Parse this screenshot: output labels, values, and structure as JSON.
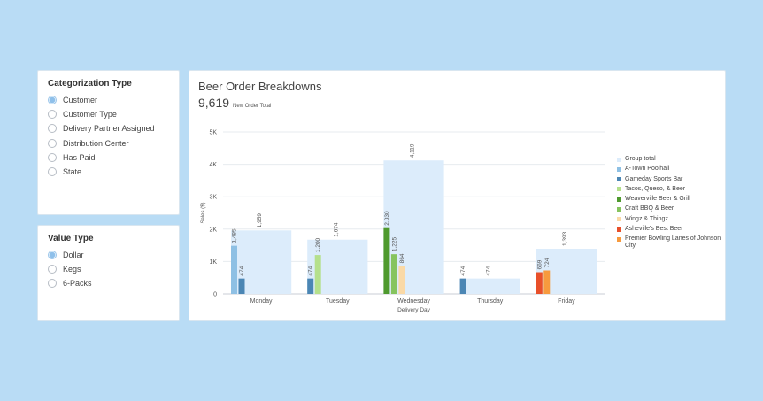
{
  "categorization": {
    "title": "Categorization Type",
    "options": [
      "Customer",
      "Customer Type",
      "Delivery Partner Assigned",
      "Distribution Center",
      "Has Paid",
      "State"
    ],
    "selected": 0
  },
  "value_type": {
    "title": "Value Type",
    "options": [
      "Dollar",
      "Kegs",
      "6-Packs"
    ],
    "selected": 0
  },
  "header": {
    "title": "Beer Order Breakdowns",
    "total_value": "9,619",
    "total_label": "New Order Total"
  },
  "colors": {
    "group_total": "#dcecfb",
    "a_town": "#8ec0e4",
    "gameday": "#4b86b4",
    "tacos": "#b5e08c",
    "weaverville": "#4f9a2e",
    "craft": "#86c45e",
    "wingz": "#fad9a6",
    "asheville": "#e8502a",
    "premier": "#f79a3e"
  },
  "chart_data": {
    "type": "bar",
    "xlabel": "Delivery Day",
    "ylabel": "Sales ($)",
    "ylim": [
      0,
      5000
    ],
    "yticks": [
      0,
      1000,
      2000,
      3000,
      4000,
      5000
    ],
    "ytick_labels": [
      "0",
      "1K",
      "2K",
      "3K",
      "4K",
      "5K"
    ],
    "grid": true,
    "legend": "right",
    "categories": [
      "Monday",
      "Tuesday",
      "Wednesday",
      "Thursday",
      "Friday"
    ],
    "group_total": {
      "name": "Group total",
      "values": [
        1959,
        1674,
        4119,
        474,
        1393
      ],
      "labels": [
        "1,959",
        "1,674",
        "4,119",
        "474",
        "1,393"
      ]
    },
    "series": [
      {
        "name": "A-Town Poolhall",
        "color_key": "a_town",
        "values": [
          1485,
          null,
          null,
          null,
          null
        ],
        "labels": [
          "1,485",
          "",
          "",
          "",
          ""
        ]
      },
      {
        "name": "Gameday Sports Bar",
        "color_key": "gameday",
        "values": [
          474,
          474,
          null,
          474,
          null
        ],
        "labels": [
          "474",
          "474",
          "",
          "474",
          ""
        ]
      },
      {
        "name": "Tacos, Queso, & Beer",
        "color_key": "tacos",
        "values": [
          null,
          1200,
          null,
          null,
          null
        ],
        "labels": [
          "",
          "1,200",
          "",
          "",
          ""
        ]
      },
      {
        "name": "Weaverville Beer & Grill",
        "color_key": "weaverville",
        "values": [
          null,
          null,
          2030,
          null,
          null
        ],
        "labels": [
          "",
          "",
          "2,030",
          "",
          ""
        ]
      },
      {
        "name": "Craft BBQ & Beer",
        "color_key": "craft",
        "values": [
          null,
          null,
          1225,
          null,
          null
        ],
        "labels": [
          "",
          "",
          "1,225",
          "",
          ""
        ]
      },
      {
        "name": "Wingz & Thingz",
        "color_key": "wingz",
        "values": [
          null,
          null,
          864,
          null,
          null
        ],
        "labels": [
          "",
          "",
          "864",
          "",
          ""
        ]
      },
      {
        "name": "Asheville's Best Beer",
        "color_key": "asheville",
        "values": [
          null,
          null,
          null,
          null,
          669
        ],
        "labels": [
          "",
          "",
          "",
          "",
          "669"
        ]
      },
      {
        "name": "Premier Bowling Lanes of Johnson City",
        "color_key": "premier",
        "values": [
          null,
          null,
          null,
          null,
          724
        ],
        "labels": [
          "",
          "",
          "",
          "",
          "724"
        ]
      }
    ]
  }
}
